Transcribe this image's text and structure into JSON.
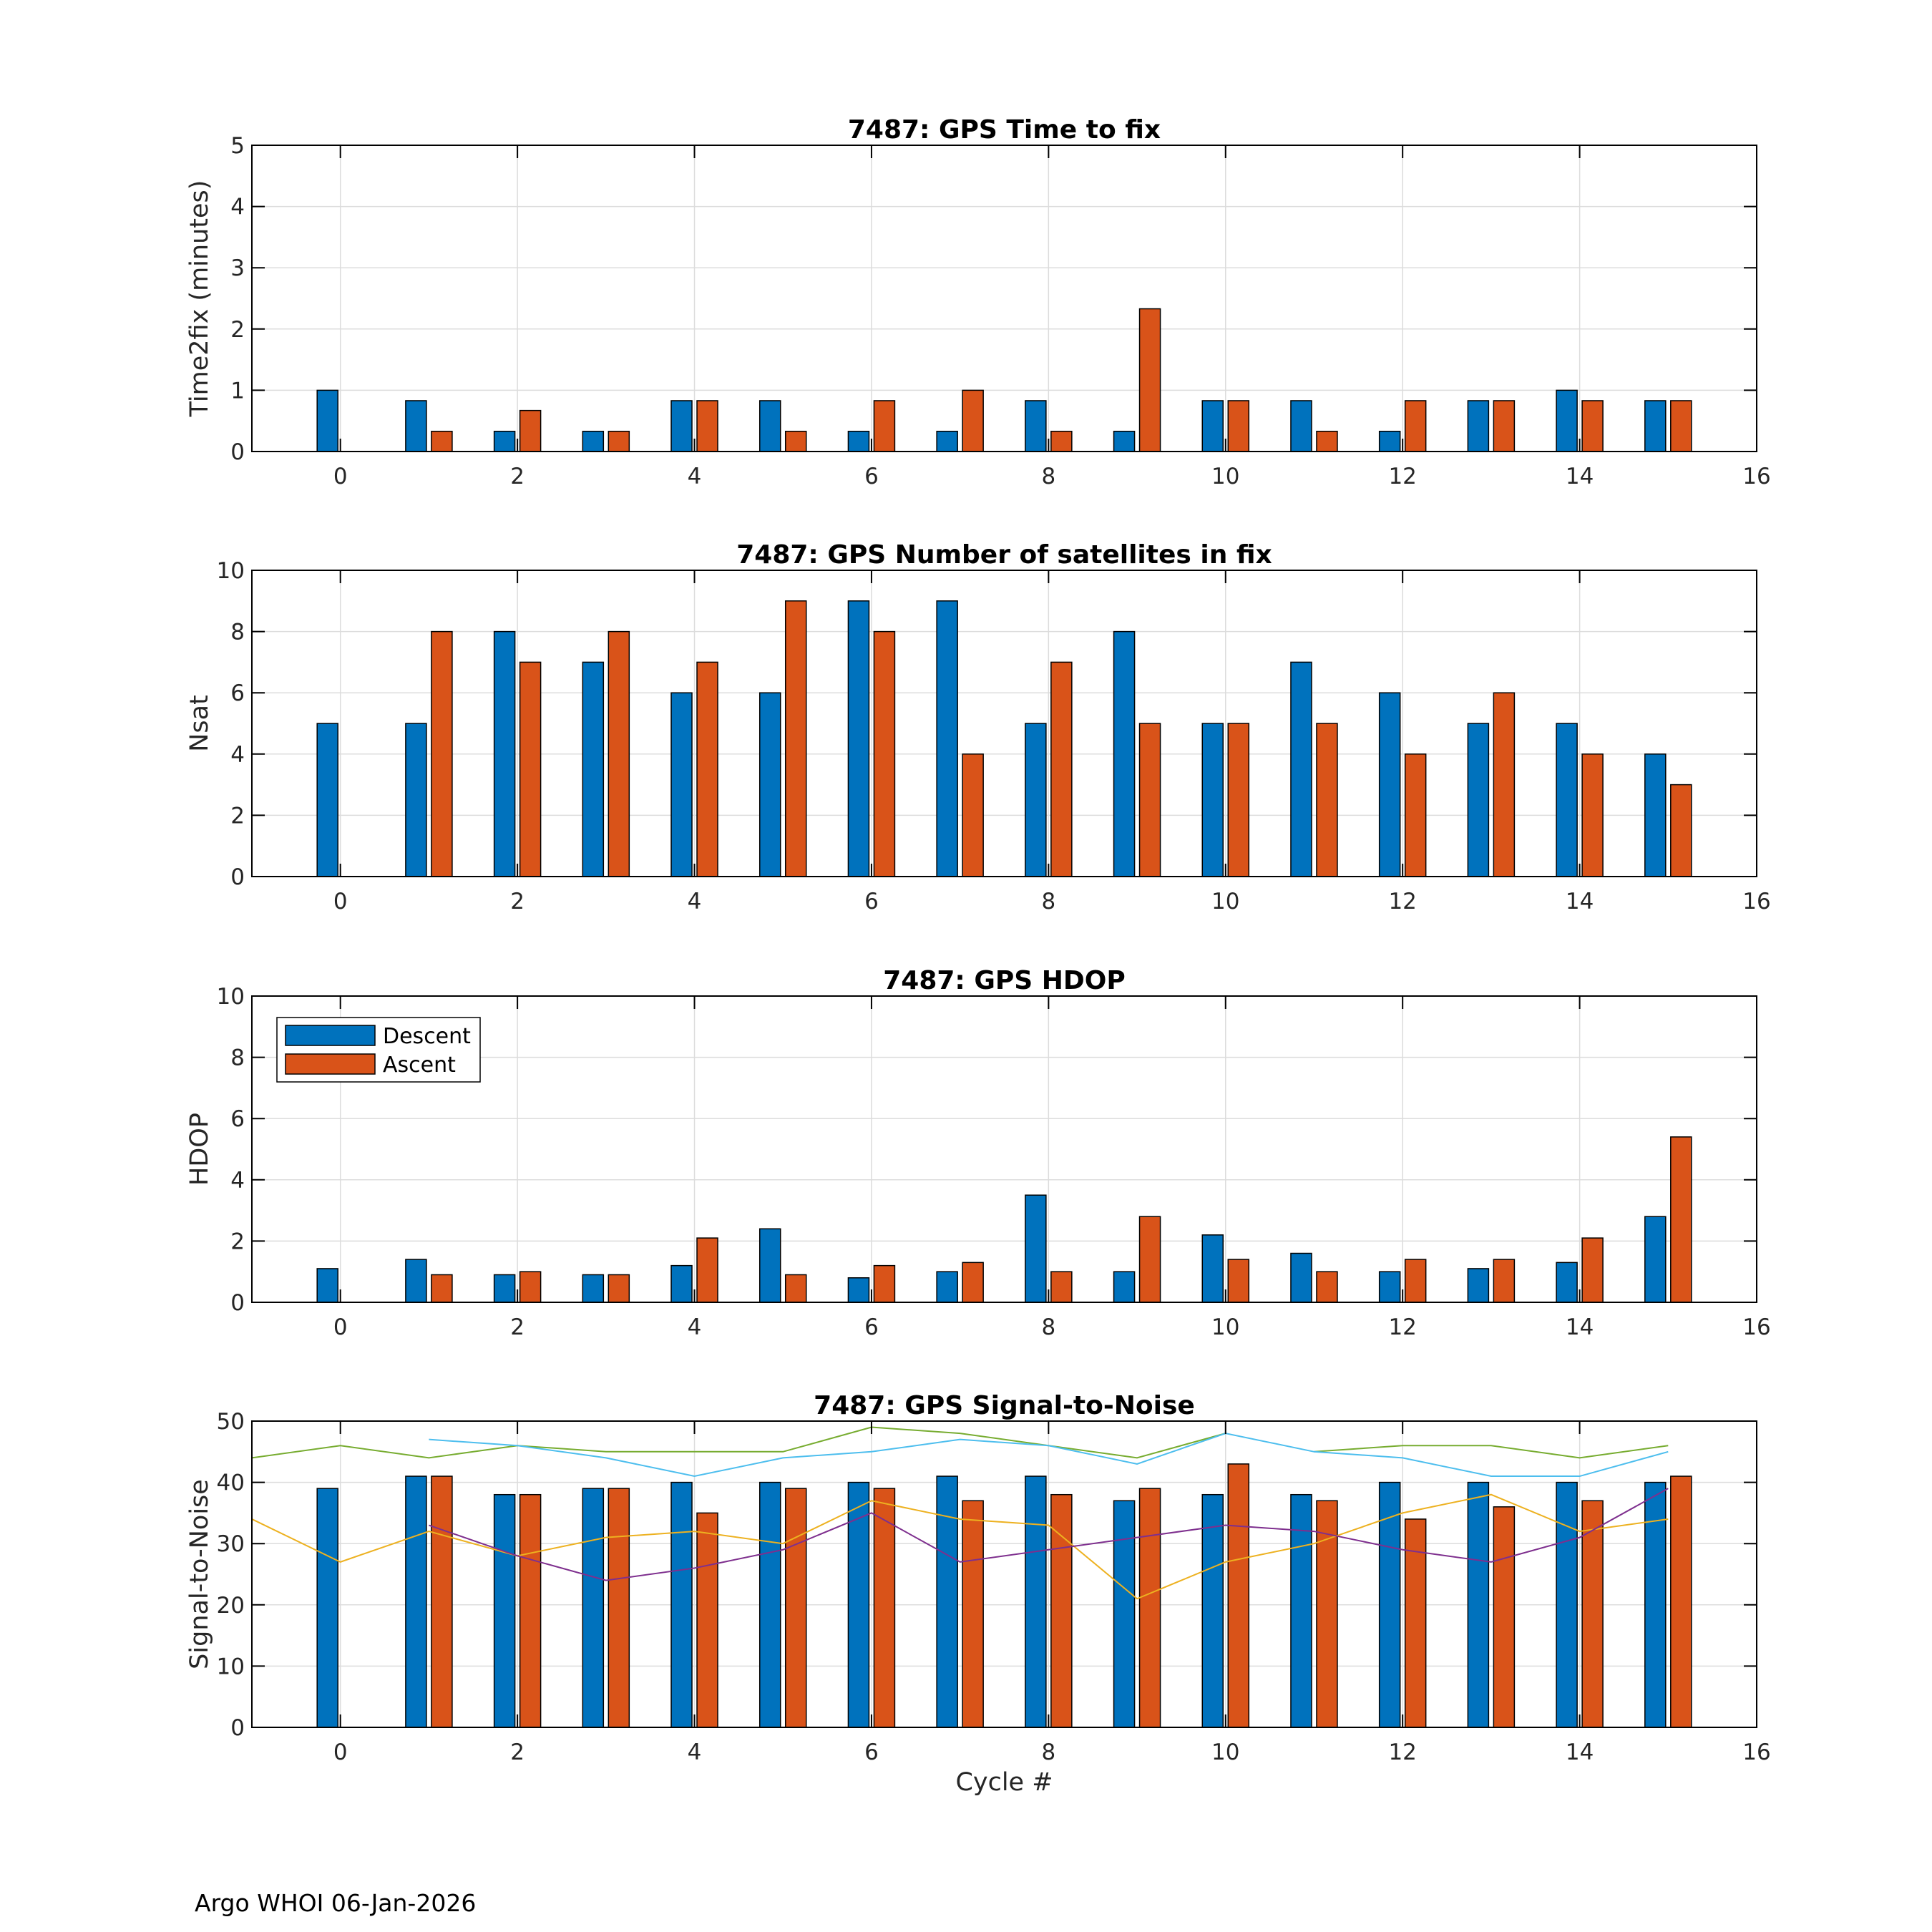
{
  "figure": {
    "footer": "Argo WHOI 06-Jan-2026",
    "xlabel": "Cycle #",
    "legend": {
      "descent": "Descent",
      "ascent": "Ascent",
      "placement": "top-left"
    },
    "colors": {
      "descent": "#0072BD",
      "ascent": "#D95319",
      "grid": "#dcdcdc",
      "axis": "#000000"
    }
  },
  "chart_data": [
    {
      "type": "bar",
      "title": "7487: GPS Time to fix",
      "xlabel": "",
      "ylabel": "Time2fix (minutes)",
      "xlim": [
        -1,
        16
      ],
      "ylim": [
        0,
        5
      ],
      "xticks": [
        "0",
        "2",
        "4",
        "6",
        "8",
        "10",
        "12",
        "14",
        "16"
      ],
      "yticks": [
        "0",
        "1",
        "2",
        "3",
        "4",
        "5"
      ],
      "grid": true,
      "categories": [
        0,
        1,
        2,
        3,
        4,
        5,
        6,
        7,
        8,
        9,
        10,
        11,
        12,
        13,
        14,
        15
      ],
      "series": [
        {
          "name": "Descent",
          "values": [
            1,
            0.83,
            0.33,
            0.33,
            0.83,
            0.83,
            0.33,
            0.33,
            0.83,
            0.33,
            0.83,
            0.83,
            0.33,
            0.83,
            1,
            0.83
          ]
        },
        {
          "name": "Ascent",
          "values": [
            null,
            0.33,
            0.67,
            0.33,
            0.83,
            0.33,
            0.83,
            1,
            0.33,
            2.33,
            0.83,
            0.33,
            0.83,
            0.83,
            0.83,
            0.83
          ]
        }
      ]
    },
    {
      "type": "bar",
      "title": "7487: GPS Number of satellites in fix",
      "xlabel": "",
      "ylabel": "Nsat",
      "xlim": [
        -1,
        16
      ],
      "ylim": [
        0,
        10
      ],
      "xticks": [
        "0",
        "2",
        "4",
        "6",
        "8",
        "10",
        "12",
        "14",
        "16"
      ],
      "yticks": [
        "0",
        "2",
        "4",
        "6",
        "8",
        "10"
      ],
      "grid": true,
      "categories": [
        0,
        1,
        2,
        3,
        4,
        5,
        6,
        7,
        8,
        9,
        10,
        11,
        12,
        13,
        14,
        15
      ],
      "series": [
        {
          "name": "Descent",
          "values": [
            5,
            5,
            8,
            7,
            6,
            6,
            9,
            9,
            5,
            8,
            5,
            7,
            6,
            5,
            5,
            4
          ]
        },
        {
          "name": "Ascent",
          "values": [
            null,
            8,
            7,
            8,
            7,
            9,
            8,
            4,
            7,
            5,
            5,
            5,
            4,
            6,
            4,
            3
          ]
        }
      ]
    },
    {
      "type": "bar",
      "title": "7487: GPS HDOP",
      "xlabel": "",
      "ylabel": "HDOP",
      "xlim": [
        -1,
        16
      ],
      "ylim": [
        0,
        10
      ],
      "xticks": [
        "0",
        "2",
        "4",
        "6",
        "8",
        "10",
        "12",
        "14",
        "16"
      ],
      "yticks": [
        "0",
        "2",
        "4",
        "6",
        "8",
        "10"
      ],
      "grid": true,
      "legend": [
        "Descent",
        "Ascent"
      ],
      "categories": [
        0,
        1,
        2,
        3,
        4,
        5,
        6,
        7,
        8,
        9,
        10,
        11,
        12,
        13,
        14,
        15
      ],
      "series": [
        {
          "name": "Descent",
          "values": [
            1.1,
            1.4,
            0.9,
            0.9,
            1.2,
            2.4,
            0.8,
            1.0,
            3.5,
            1.0,
            2.2,
            1.6,
            1.0,
            1.1,
            1.3,
            2.8
          ]
        },
        {
          "name": "Ascent",
          "values": [
            null,
            0.9,
            1.0,
            0.9,
            2.1,
            0.9,
            1.2,
            1.3,
            1.0,
            2.8,
            1.4,
            1.0,
            1.4,
            1.4,
            2.1,
            5.4
          ]
        }
      ]
    },
    {
      "type": "bar",
      "title": "7487: GPS Signal-to-Noise",
      "xlabel": "Cycle #",
      "ylabel": "Signal-to-Noise",
      "xlim": [
        -1,
        16
      ],
      "ylim": [
        0,
        50
      ],
      "xticks": [
        "0",
        "2",
        "4",
        "6",
        "8",
        "10",
        "12",
        "14",
        "16"
      ],
      "yticks": [
        "0",
        "10",
        "20",
        "30",
        "40",
        "50"
      ],
      "grid": true,
      "categories": [
        0,
        1,
        2,
        3,
        4,
        5,
        6,
        7,
        8,
        9,
        10,
        11,
        12,
        13,
        14,
        15
      ],
      "series": [
        {
          "name": "Descent",
          "values": [
            39,
            41,
            38,
            39,
            40,
            40,
            40,
            41,
            41,
            37,
            38,
            38,
            40,
            40,
            40,
            40
          ]
        },
        {
          "name": "Ascent",
          "values": [
            null,
            41,
            38,
            39,
            35,
            39,
            39,
            37,
            38,
            39,
            43,
            37,
            34,
            36,
            37,
            41
          ]
        }
      ],
      "lines": [
        {
          "color": "#77AC30",
          "x": [
            -1,
            0,
            1,
            2,
            3,
            4,
            5,
            6,
            7,
            8,
            9,
            10
          ],
          "y": [
            44,
            46,
            44,
            46,
            45,
            45,
            45,
            49,
            48,
            46,
            44,
            48
          ]
        },
        {
          "color": "#77AC30",
          "x": [
            11,
            12,
            13,
            14,
            15
          ],
          "y": [
            45,
            46,
            46,
            44,
            46
          ]
        },
        {
          "color": "#4DBEEE",
          "x": [
            1,
            2,
            3,
            4,
            5,
            6,
            7,
            8,
            9,
            10,
            11,
            12,
            13,
            14,
            15
          ],
          "y": [
            47,
            46,
            44,
            41,
            44,
            45,
            47,
            46,
            43,
            48,
            45,
            44,
            41,
            41,
            45
          ]
        },
        {
          "color": "#EDB120",
          "x": [
            -1,
            0,
            1,
            2,
            3,
            4,
            5,
            6,
            7,
            8,
            9,
            10,
            11,
            12,
            13,
            14,
            15
          ],
          "y": [
            34,
            27,
            32,
            28,
            31,
            32,
            30,
            37,
            34,
            33,
            21,
            27,
            30,
            35,
            38,
            32,
            34
          ]
        },
        {
          "color": "#7E2F8E",
          "x": [
            1,
            2,
            3,
            4,
            5,
            6,
            7,
            8,
            9,
            10,
            11,
            12,
            13,
            14,
            15
          ],
          "y": [
            33,
            28,
            24,
            26,
            29,
            35,
            27,
            29,
            31,
            33,
            32,
            29,
            27,
            31,
            39
          ]
        }
      ]
    }
  ]
}
